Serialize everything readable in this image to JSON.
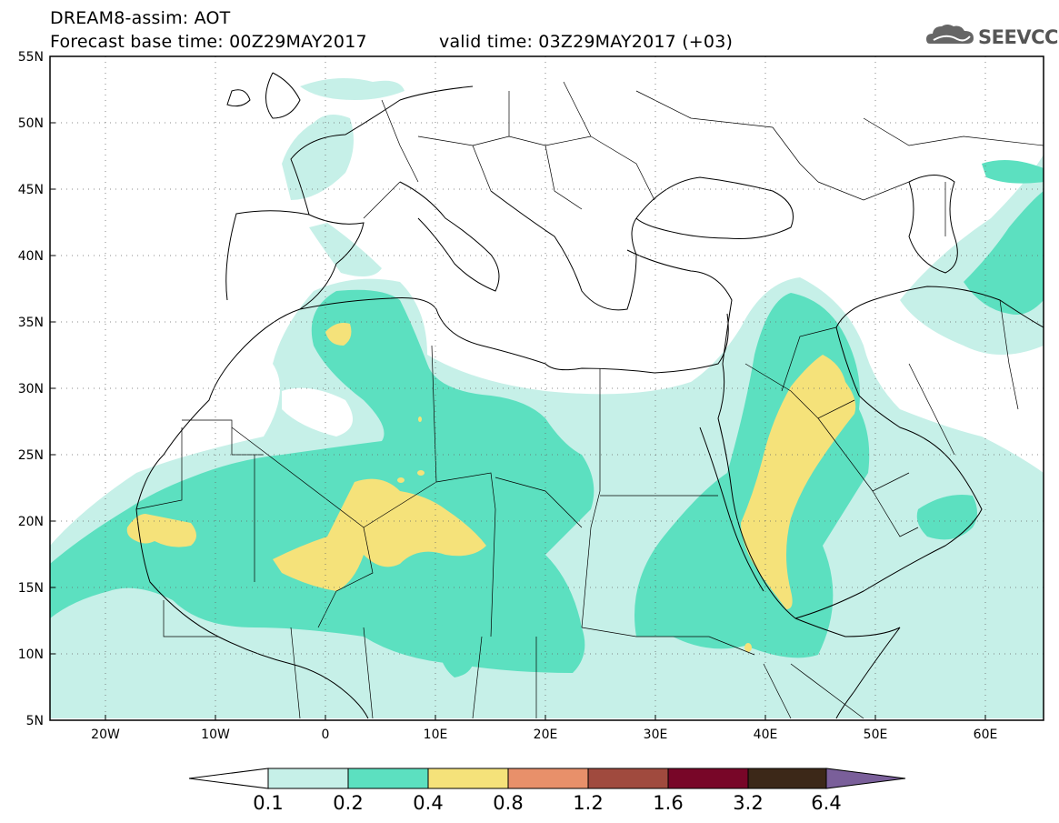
{
  "header": {
    "title": "DREAM8-assim: AOT",
    "base_time": "Forecast base time: 00Z29MAY2017",
    "valid_time": "valid time: 03Z29MAY2017 (+03)",
    "logo_text": "SEEVCCC"
  },
  "map": {
    "projection": "lat-lon",
    "lon_range": [
      -25,
      65
    ],
    "lat_range": [
      5,
      55
    ],
    "lat_ticks": [
      "55N",
      "50N",
      "45N",
      "40N",
      "35N",
      "30N",
      "25N",
      "20N",
      "15N",
      "10N",
      "5N"
    ],
    "lon_ticks": [
      "20W",
      "10W",
      "0",
      "10E",
      "20E",
      "30E",
      "40E",
      "50E",
      "60E"
    ],
    "grid": true
  },
  "colorbar": {
    "labels": [
      "0.1",
      "0.2",
      "0.4",
      "0.8",
      "1.2",
      "1.6",
      "3.2",
      "6.4"
    ],
    "colors": [
      "#ffffff",
      "#c6f0e8",
      "#5ce0c0",
      "#f5e27a",
      "#e8906a",
      "#a04a3e",
      "#780628",
      "#3c2818",
      "#7a5f9a"
    ]
  }
}
